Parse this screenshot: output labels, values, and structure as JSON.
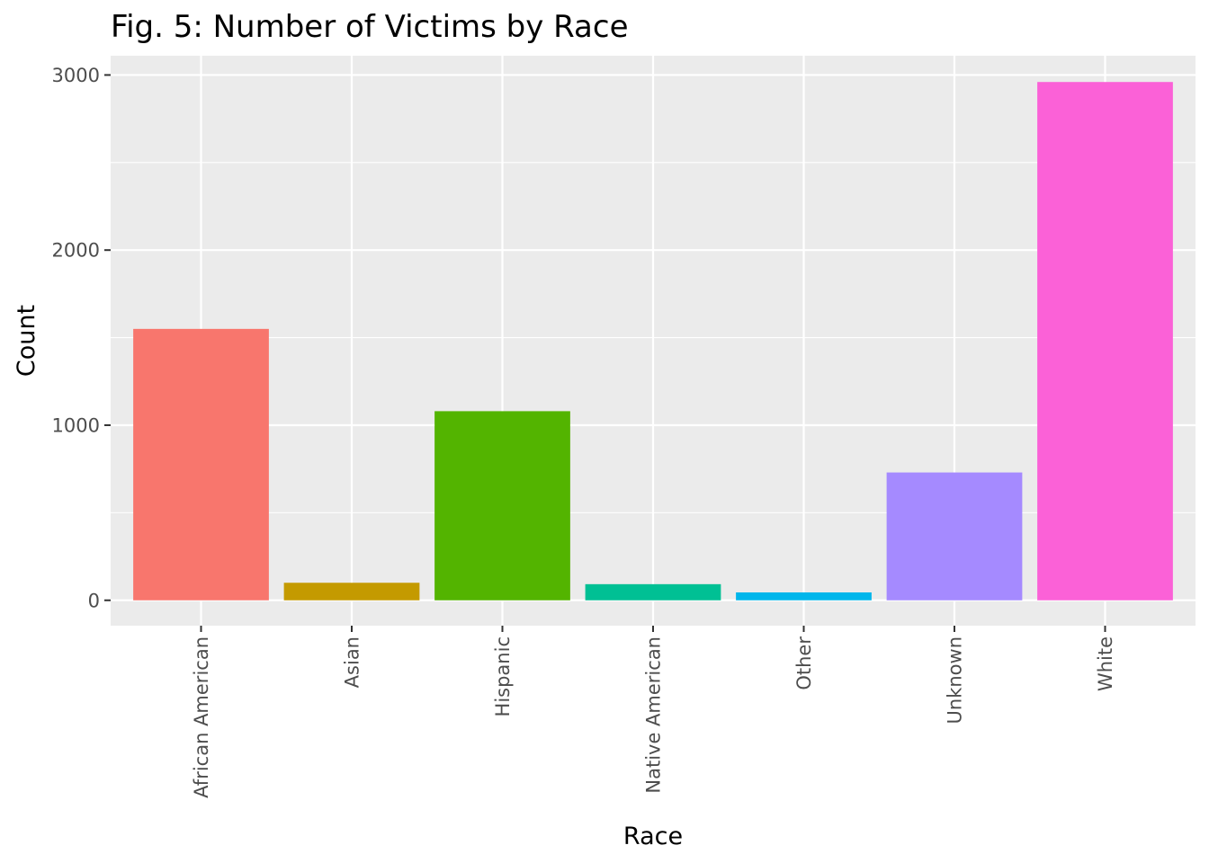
{
  "chart_data": {
    "type": "bar",
    "title": "Fig. 5: Number of Victims by Race",
    "xlabel": "Race",
    "ylabel": "Count",
    "categories": [
      "African American",
      "Asian",
      "Hispanic",
      "Native American",
      "Other",
      "Unknown",
      "White"
    ],
    "values": [
      1550,
      100,
      1080,
      92,
      45,
      730,
      2960
    ],
    "colors": [
      "#F8766D",
      "#C49A00",
      "#53B400",
      "#00C094",
      "#00B6EB",
      "#A58AFF",
      "#FB61D7"
    ],
    "ylim": [
      -145,
      3110
    ],
    "yticks": [
      0,
      1000,
      2000,
      3000
    ],
    "ytick_labels": [
      "0",
      "1000",
      "2000",
      "3000"
    ],
    "grid": true,
    "legend": "none",
    "background": "#EBEBEB"
  }
}
